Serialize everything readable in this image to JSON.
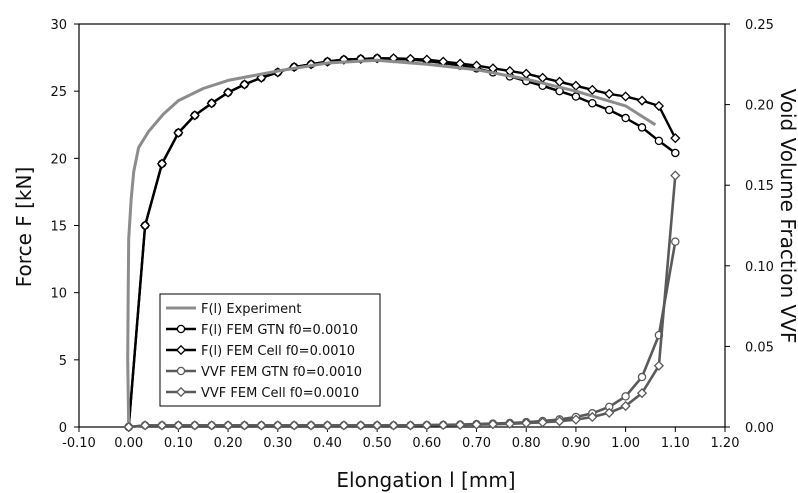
{
  "chart_data": {
    "type": "line",
    "xlabel": "Elongation  l [mm]",
    "ylabel": "Force  F [kN]",
    "y2label": "Void Volume Fraction VVF",
    "xlim": [
      -0.1,
      1.2
    ],
    "ylim": [
      0,
      30
    ],
    "y2lim": [
      0,
      0.25
    ],
    "x_ticks": [
      "-0.10",
      "0.00",
      "0.10",
      "0.20",
      "0.30",
      "0.40",
      "0.50",
      "0.60",
      "0.70",
      "0.80",
      "0.90",
      "1.00",
      "1.10",
      "1.20"
    ],
    "y_ticks": [
      "0",
      "5",
      "10",
      "15",
      "20",
      "25",
      "30"
    ],
    "y2_ticks": [
      "0.00",
      "0.05",
      "0.10",
      "0.15",
      "0.20",
      "0.25"
    ],
    "grid": false,
    "legend_position": "lower-left",
    "series": [
      {
        "name": "F(l) Experiment",
        "axis": "left",
        "color": "#8c8c8c",
        "marker": "none",
        "x": [
          0.0,
          -0.002,
          -0.001,
          0.0,
          0.005,
          0.01,
          0.02,
          0.04,
          0.07,
          0.1,
          0.15,
          0.2,
          0.3,
          0.4,
          0.5,
          0.6,
          0.7,
          0.8,
          0.9,
          1.0,
          1.06
        ],
        "y": [
          0.0,
          5.0,
          10.0,
          14.0,
          17.0,
          19.0,
          20.8,
          22.0,
          23.3,
          24.3,
          25.2,
          25.8,
          26.5,
          27.1,
          27.3,
          27.0,
          26.6,
          25.9,
          25.0,
          23.9,
          22.5
        ]
      },
      {
        "name": "F(l) FEM GTN f0=0.0010",
        "axis": "left",
        "color": "#000000",
        "marker": "circle",
        "x": [
          0.0,
          0.033,
          0.067,
          0.1,
          0.133,
          0.167,
          0.2,
          0.233,
          0.267,
          0.3,
          0.333,
          0.367,
          0.4,
          0.433,
          0.467,
          0.5,
          0.533,
          0.567,
          0.6,
          0.633,
          0.667,
          0.7,
          0.733,
          0.767,
          0.8,
          0.833,
          0.867,
          0.9,
          0.933,
          0.967,
          1.0,
          1.033,
          1.067,
          1.1
        ],
        "y": [
          0.0,
          15.0,
          19.6,
          21.9,
          23.2,
          24.1,
          24.9,
          25.5,
          26.0,
          26.4,
          26.8,
          27.0,
          27.2,
          27.35,
          27.4,
          27.45,
          27.4,
          27.35,
          27.25,
          27.1,
          26.9,
          26.7,
          26.4,
          26.1,
          25.75,
          25.4,
          25.0,
          24.6,
          24.1,
          23.6,
          23.0,
          22.3,
          21.3,
          20.4
        ]
      },
      {
        "name": "F(l) FEM Cell f0=0.0010",
        "axis": "left",
        "color": "#000000",
        "marker": "diamond",
        "x": [
          0.0,
          0.033,
          0.067,
          0.1,
          0.133,
          0.167,
          0.2,
          0.233,
          0.267,
          0.3,
          0.333,
          0.367,
          0.4,
          0.433,
          0.467,
          0.5,
          0.533,
          0.567,
          0.6,
          0.633,
          0.667,
          0.7,
          0.733,
          0.767,
          0.8,
          0.833,
          0.867,
          0.9,
          0.933,
          0.967,
          1.0,
          1.033,
          1.067,
          1.1
        ],
        "y": [
          0.0,
          15.0,
          19.6,
          21.9,
          23.2,
          24.1,
          24.9,
          25.5,
          26.0,
          26.4,
          26.8,
          27.0,
          27.2,
          27.35,
          27.4,
          27.45,
          27.45,
          27.4,
          27.35,
          27.2,
          27.05,
          26.9,
          26.7,
          26.5,
          26.3,
          26.0,
          25.7,
          25.4,
          25.1,
          24.8,
          24.6,
          24.3,
          23.9,
          21.5
        ]
      },
      {
        "name": "VVF FEM GTN f0=0.0010",
        "axis": "right",
        "color": "#5a5a5a",
        "marker": "circle",
        "x": [
          0.0,
          0.033,
          0.067,
          0.1,
          0.133,
          0.167,
          0.2,
          0.233,
          0.267,
          0.3,
          0.333,
          0.367,
          0.4,
          0.433,
          0.467,
          0.5,
          0.533,
          0.567,
          0.6,
          0.633,
          0.667,
          0.7,
          0.733,
          0.767,
          0.8,
          0.833,
          0.867,
          0.9,
          0.933,
          0.967,
          1.0,
          1.033,
          1.067,
          1.1
        ],
        "y": [
          0.0,
          0.001,
          0.001,
          0.001,
          0.001,
          0.001,
          0.001,
          0.001,
          0.001,
          0.001,
          0.001,
          0.001,
          0.001,
          0.001,
          0.001,
          0.001,
          0.001,
          0.001,
          0.0012,
          0.0013,
          0.0015,
          0.0018,
          0.0021,
          0.0025,
          0.003,
          0.0037,
          0.0047,
          0.0062,
          0.0085,
          0.0125,
          0.019,
          0.031,
          0.057,
          0.115
        ]
      },
      {
        "name": "VVF FEM Cell f0=0.0010",
        "axis": "right",
        "color": "#5a5a5a",
        "marker": "diamond",
        "x": [
          0.0,
          0.033,
          0.067,
          0.1,
          0.133,
          0.167,
          0.2,
          0.233,
          0.267,
          0.3,
          0.333,
          0.367,
          0.4,
          0.433,
          0.467,
          0.5,
          0.533,
          0.567,
          0.6,
          0.633,
          0.667,
          0.7,
          0.733,
          0.767,
          0.8,
          0.833,
          0.867,
          0.9,
          0.933,
          0.967,
          1.0,
          1.033,
          1.067,
          1.1
        ],
        "y": [
          0.0,
          0.001,
          0.001,
          0.001,
          0.001,
          0.001,
          0.001,
          0.001,
          0.001,
          0.001,
          0.001,
          0.001,
          0.001,
          0.001,
          0.001,
          0.001,
          0.001,
          0.001,
          0.0011,
          0.0012,
          0.0013,
          0.0015,
          0.0017,
          0.002,
          0.0024,
          0.0029,
          0.0036,
          0.0046,
          0.0062,
          0.0088,
          0.013,
          0.021,
          0.038,
          0.156
        ]
      }
    ]
  }
}
